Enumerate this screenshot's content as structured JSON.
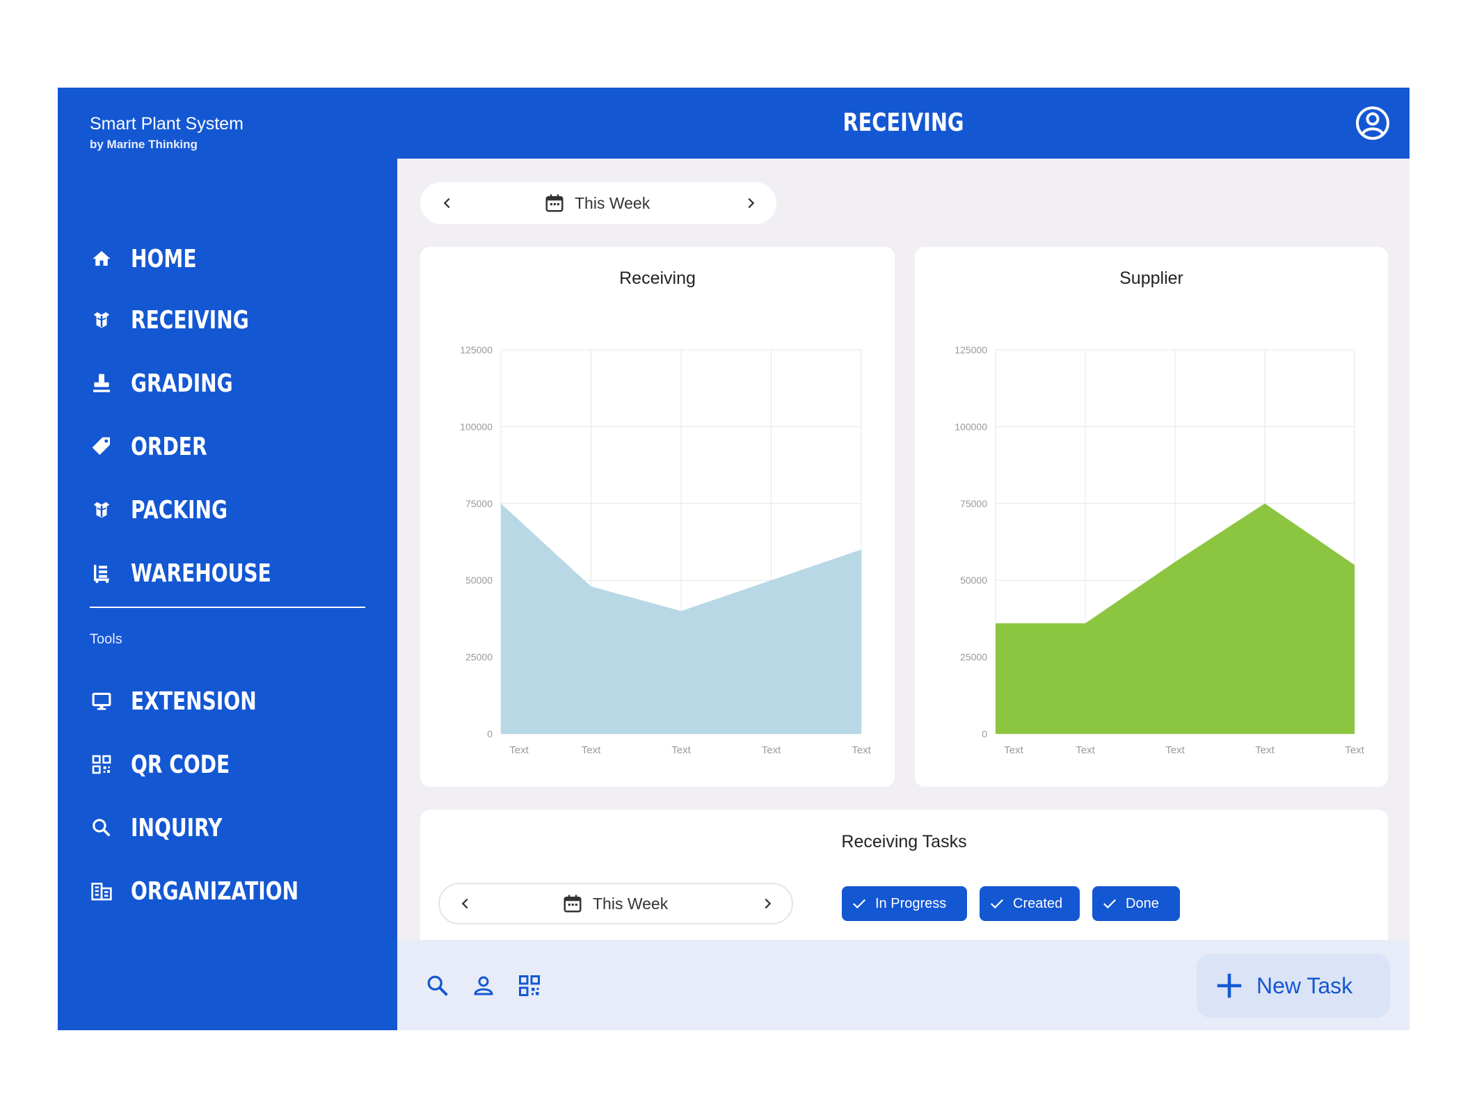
{
  "brand": {
    "title": "Smart Plant System",
    "subtitle": "by Marine Thinking"
  },
  "nav": {
    "items": [
      {
        "label": "HOME",
        "icon": "home-icon"
      },
      {
        "label": "RECEIVING",
        "icon": "box-icon"
      },
      {
        "label": "GRADING",
        "icon": "stamp-icon"
      },
      {
        "label": "ORDER",
        "icon": "tag-icon"
      },
      {
        "label": "PACKING",
        "icon": "box-icon"
      },
      {
        "label": "WAREHOUSE",
        "icon": "cart-icon"
      }
    ],
    "tools_label": "Tools",
    "tools": [
      {
        "label": "EXTENSION",
        "icon": "monitor-icon"
      },
      {
        "label": "QR CODE",
        "icon": "qr-code-icon"
      },
      {
        "label": "INQUIRY",
        "icon": "search-icon"
      },
      {
        "label": "ORGANIZATION",
        "icon": "building-icon"
      }
    ]
  },
  "header": {
    "title": "RECEIVING",
    "avatar_icon": "account-circle-icon"
  },
  "week_selector": {
    "label": "This Week"
  },
  "colors": {
    "primary": "#1457d2",
    "receiving_area": "#b8d8e6",
    "supplier_area": "#8cc540"
  },
  "chart_data": [
    {
      "type": "area",
      "title": "Receiving",
      "categories": [
        "Text",
        "Text",
        "Text",
        "Text",
        "Text"
      ],
      "values": [
        75000,
        48000,
        40000,
        50000,
        60000
      ],
      "y_ticks": [
        "0",
        "25000",
        "50000",
        "75000",
        "100000",
        "125000"
      ],
      "ylim": [
        0,
        125000
      ],
      "grid": true,
      "color": "#b8d8e6"
    },
    {
      "type": "area",
      "title": "Supplier",
      "categories": [
        "Text",
        "Text",
        "Text",
        "Text",
        "Text"
      ],
      "values": [
        36000,
        36000,
        56000,
        75000,
        55000
      ],
      "y_ticks": [
        "0",
        "25000",
        "50000",
        "75000",
        "100000",
        "125000"
      ],
      "ylim": [
        0,
        125000
      ],
      "grid": true,
      "color": "#8cc540"
    }
  ],
  "tasks": {
    "title": "Receiving Tasks",
    "week_label": "This Week",
    "filters": [
      {
        "label": "In Progress",
        "checked": true
      },
      {
        "label": "Created",
        "checked": true
      },
      {
        "label": "Done",
        "checked": true
      }
    ]
  },
  "bottom_bar": {
    "icons": [
      "search-icon",
      "person-icon",
      "qr-code-icon"
    ],
    "new_task_label": "New Task"
  }
}
